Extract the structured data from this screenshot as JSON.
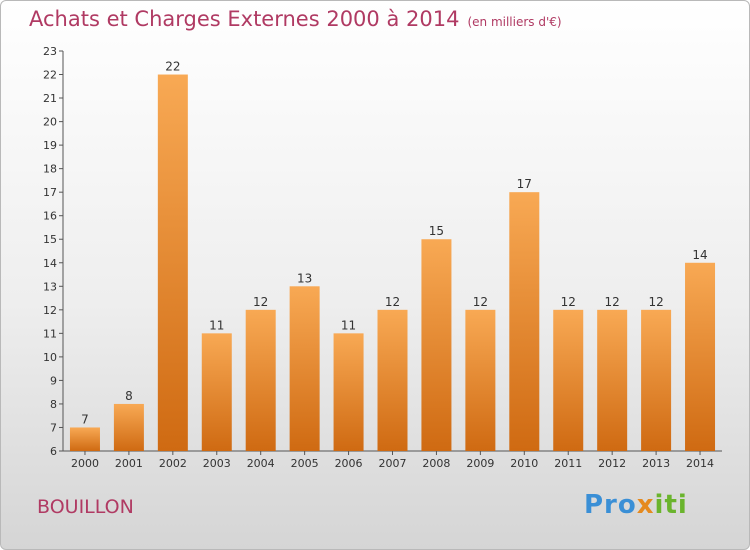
{
  "title": "Achats et Charges Externes 2000 à 2014",
  "subtitle": "(en milliers d'€)",
  "town": "BOUILLON",
  "logo": {
    "p1": "Pro",
    "p2": "x",
    "p3": "iti"
  },
  "colors": {
    "bar_light": "#f8a954",
    "bar_dark": "#cf6a12",
    "title": "#b03a63"
  },
  "chart_data": {
    "type": "bar",
    "categories": [
      "2000",
      "2001",
      "2002",
      "2003",
      "2004",
      "2005",
      "2006",
      "2007",
      "2008",
      "2009",
      "2010",
      "2011",
      "2012",
      "2013",
      "2014"
    ],
    "values": [
      7,
      8,
      22,
      11,
      12,
      13,
      11,
      12,
      15,
      12,
      17,
      12,
      12,
      12,
      14
    ],
    "ylim": [
      6,
      23
    ],
    "yticks": [
      6,
      7,
      8,
      9,
      10,
      11,
      12,
      13,
      14,
      15,
      16,
      17,
      18,
      19,
      20,
      21,
      22,
      23
    ],
    "grid": false,
    "data_labels": true
  }
}
